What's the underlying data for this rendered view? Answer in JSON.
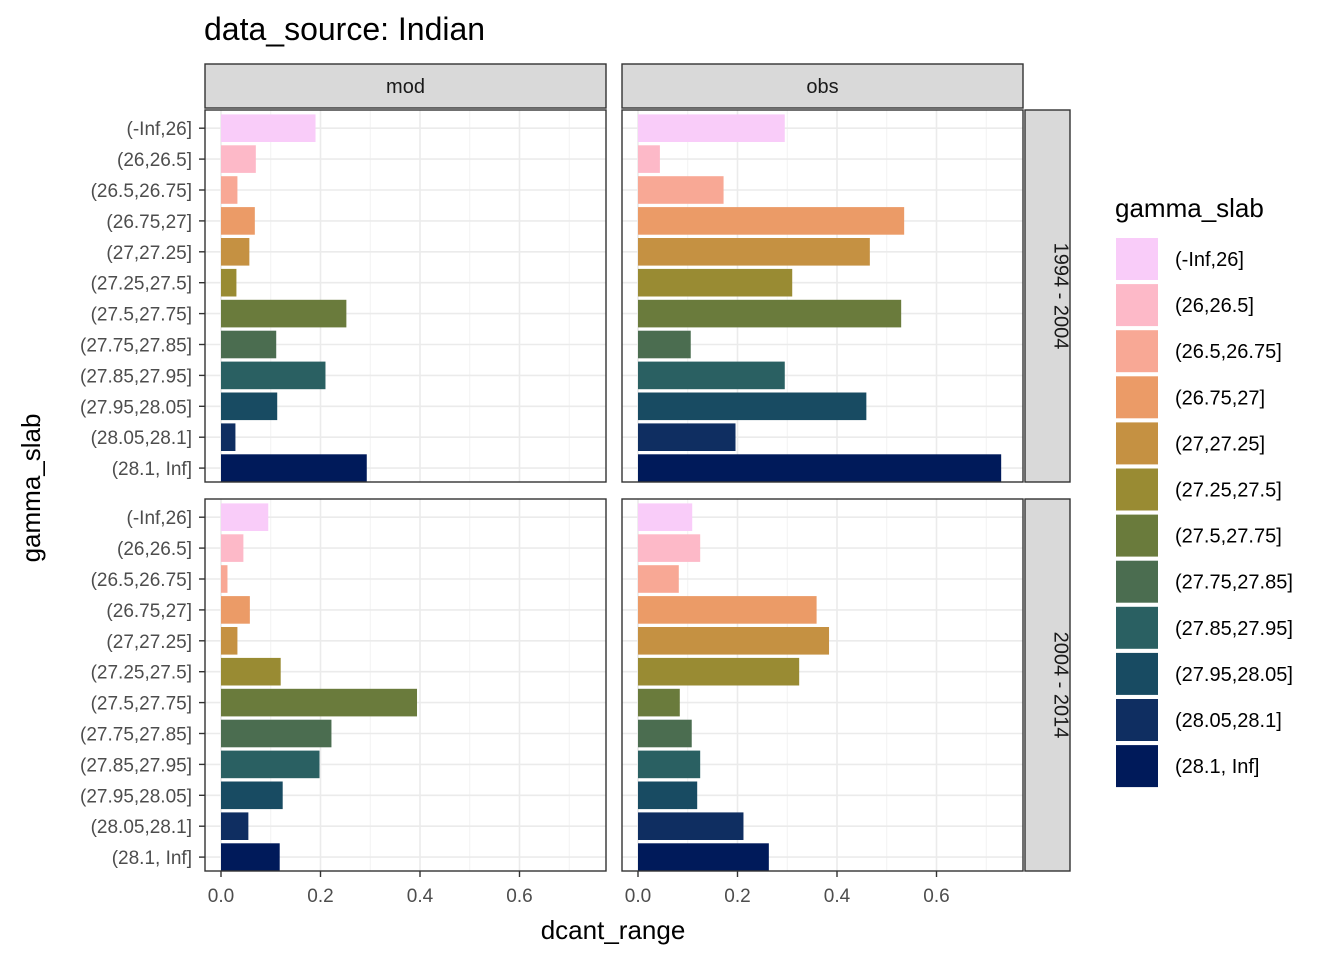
{
  "chart_data": {
    "type": "bar",
    "orientation": "horizontal",
    "title": "data_source: Indian",
    "xlabel": "dcant_range",
    "ylabel": "gamma_slab",
    "xlim": [
      -0.03,
      0.76
    ],
    "xticks": [
      "0.0",
      "0.2",
      "0.4",
      "0.6"
    ],
    "xtick_values": [
      0,
      0.2,
      0.4,
      0.6
    ],
    "grid": true,
    "legend_position": "right",
    "legend_title": "gamma_slab",
    "categories": [
      "(-Inf,26]",
      "(26,26.5]",
      "(26.5,26.75]",
      "(26.75,27]",
      "(27,27.25]",
      "(27.25,27.5]",
      "(27.5,27.75]",
      "(27.75,27.85]",
      "(27.85,27.95]",
      "(27.95,28.05]",
      "(28.05,28.1]",
      "(28.1, Inf]"
    ],
    "colors": [
      "#F9CCF9",
      "#FDB9C8",
      "#F8A895",
      "#EB9B67",
      "#C59142",
      "#998B33",
      "#6A7B3C",
      "#4B6D50",
      "#2A6062",
      "#184B62",
      "#0F2E61",
      "#001A5A"
    ],
    "col_facets": [
      "mod",
      "obs"
    ],
    "row_facets": [
      "1994 - 2004",
      "2004 - 2014"
    ],
    "panels": [
      {
        "row": "1994 - 2004",
        "col": "mod",
        "values": [
          0.19,
          0.07,
          0.033,
          0.068,
          0.057,
          0.031,
          0.252,
          0.111,
          0.21,
          0.113,
          0.029,
          0.293
        ]
      },
      {
        "row": "1994 - 2004",
        "col": "obs",
        "values": [
          0.295,
          0.044,
          0.172,
          0.535,
          0.466,
          0.31,
          0.529,
          0.106,
          0.295,
          0.459,
          0.196,
          0.73
        ]
      },
      {
        "row": "2004 - 2014",
        "col": "mod",
        "values": [
          0.095,
          0.045,
          0.013,
          0.058,
          0.033,
          0.12,
          0.394,
          0.222,
          0.198,
          0.124,
          0.055,
          0.118
        ]
      },
      {
        "row": "2004 - 2014",
        "col": "obs",
        "values": [
          0.109,
          0.125,
          0.082,
          0.359,
          0.384,
          0.324,
          0.084,
          0.108,
          0.125,
          0.119,
          0.212,
          0.263
        ]
      }
    ]
  }
}
